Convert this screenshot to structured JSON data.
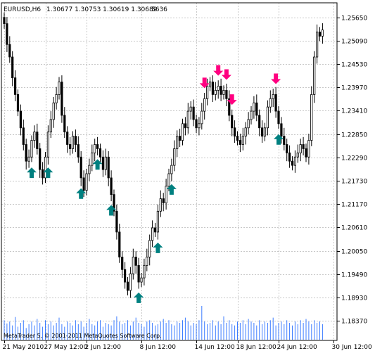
{
  "header": {
    "symbol": "EURUSD,H6",
    "ohlc": "1.30677 1.30753 1.30619 1.30689",
    "volume": "5636"
  },
  "footer": {
    "copyright": "MetaTrader 5, © 2001-2011 MetaQuotes Software Corp."
  },
  "colors": {
    "candle": "#000000",
    "volume": "#3c7cff",
    "grid": "#c8c8c8",
    "up_arrow": "#008080",
    "down_arrow": "#ff0080"
  },
  "chart_data": {
    "type": "candlestick",
    "title": "EURUSD,H6",
    "xlabel": "",
    "ylabel": "",
    "ylim": [
      1.179,
      1.26
    ],
    "grid": true,
    "y_ticks": [
      "1.25650",
      "1.25090",
      "1.24530",
      "1.23970",
      "1.23410",
      "1.22850",
      "1.22290",
      "1.21730",
      "1.21170",
      "1.20610",
      "1.20050",
      "1.19490",
      "1.18930",
      "1.18370"
    ],
    "x_ticks": [
      {
        "bar": 0,
        "label": "21 May 2010"
      },
      {
        "bar": 15,
        "label": "27 May 12:00"
      },
      {
        "bar": 30,
        "label": "2 Jun 12:00"
      },
      {
        "bar": 50,
        "label": "8 Jun 12:00"
      },
      {
        "bar": 70,
        "label": "14 Jun 12:00"
      },
      {
        "bar": 85,
        "label": "18 Jun 12:00"
      },
      {
        "bar": 100,
        "label": "24 Jun 12:00"
      },
      {
        "bar": 120,
        "label": "30 Jun 12:00"
      }
    ],
    "closes": [
      1.255,
      1.25,
      1.247,
      1.242,
      1.238,
      1.234,
      1.23,
      1.226,
      1.222,
      1.223,
      1.227,
      1.229,
      1.225,
      1.22,
      1.218,
      1.223,
      1.229,
      1.232,
      1.236,
      1.238,
      1.241,
      1.233,
      1.229,
      1.226,
      1.225,
      1.228,
      1.226,
      1.223,
      1.218,
      1.215,
      1.219,
      1.221,
      1.224,
      1.226,
      1.225,
      1.223,
      1.22,
      1.223,
      1.218,
      1.214,
      1.21,
      1.205,
      1.199,
      1.196,
      1.193,
      1.191,
      1.195,
      1.199,
      1.197,
      1.193,
      1.194,
      1.197,
      1.199,
      1.203,
      1.206,
      1.205,
      1.21,
      1.213,
      1.212,
      1.216,
      1.219,
      1.221,
      1.225,
      1.228,
      1.227,
      1.231,
      1.23,
      1.234,
      1.235,
      1.232,
      1.23,
      1.231,
      1.234,
      1.237,
      1.24,
      1.241,
      1.238,
      1.239,
      1.24,
      1.238,
      1.239,
      1.237,
      1.233,
      1.23,
      1.228,
      1.227,
      1.226,
      1.228,
      1.23,
      1.232,
      1.234,
      1.236,
      1.233,
      1.23,
      1.228,
      1.23,
      1.235,
      1.237,
      1.238,
      1.234,
      1.231,
      1.228,
      1.226,
      1.224,
      1.222,
      1.221,
      1.223,
      1.224,
      1.226,
      1.225,
      1.223,
      1.227,
      1.238,
      1.247,
      1.253,
      1.252,
      1.2535
    ],
    "volumes": [
      30,
      25,
      28,
      22,
      35,
      20,
      26,
      30,
      18,
      24,
      28,
      22,
      32,
      26,
      20,
      30,
      24,
      28,
      22,
      26,
      34,
      24,
      20,
      28,
      26,
      22,
      30,
      24,
      28,
      20,
      26,
      32,
      24,
      22,
      28,
      30,
      20,
      26,
      24,
      22,
      30,
      36,
      28,
      24,
      26,
      30,
      22,
      28,
      34,
      26,
      24,
      20,
      28,
      30,
      26,
      22,
      24,
      28,
      32,
      26,
      30,
      24,
      22,
      28,
      26,
      30,
      34,
      28,
      22,
      26,
      24,
      30,
      52,
      28,
      24,
      26,
      30,
      22,
      28,
      24,
      36,
      26,
      30,
      24,
      22,
      28,
      26,
      30,
      24,
      32,
      28,
      26,
      22,
      30,
      24,
      28,
      26,
      30,
      34,
      22,
      26,
      28,
      24,
      30,
      26,
      22,
      28,
      24,
      30,
      26,
      32,
      28,
      24,
      30,
      26,
      28,
      24
    ],
    "signals_up_bars": [
      10,
      16,
      28,
      34,
      39,
      49,
      56,
      61,
      100,
      117
    ],
    "signals_down_bars": [
      73,
      78,
      81,
      83,
      99
    ],
    "annotations": []
  }
}
